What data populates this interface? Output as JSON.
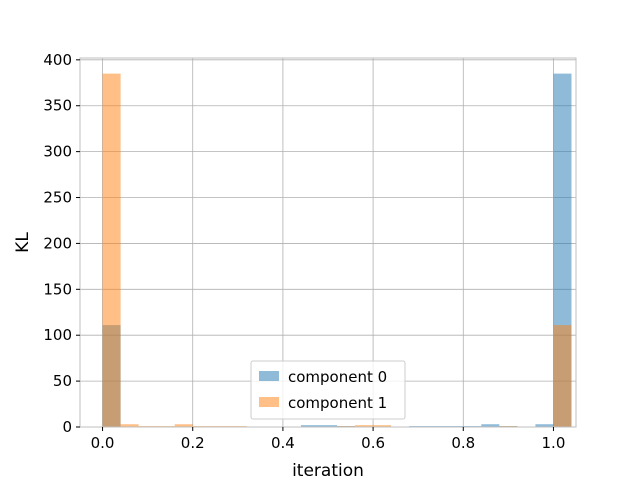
{
  "chart_data": {
    "type": "histogram",
    "xlabel": "iteration",
    "ylabel": "KL",
    "xlim": [
      -0.05,
      1.05
    ],
    "ylim": [
      0,
      402
    ],
    "grid": true,
    "legend_position": "lower-center",
    "xticks": [
      0.0,
      0.2,
      0.4,
      0.6,
      0.8,
      1.0
    ],
    "xtick_labels": [
      "0.0",
      "0.2",
      "0.4",
      "0.6",
      "0.8",
      "1.0"
    ],
    "yticks": [
      0,
      50,
      100,
      150,
      200,
      250,
      300,
      350,
      400
    ],
    "ytick_labels": [
      "0",
      "50",
      "100",
      "150",
      "200",
      "250",
      "300",
      "350",
      "400"
    ],
    "bins": [
      0.0,
      0.04,
      0.08,
      0.12,
      0.16,
      0.2,
      0.24,
      0.28,
      0.32,
      0.36,
      0.4,
      0.44,
      0.48,
      0.52,
      0.56,
      0.6,
      0.64,
      0.68,
      0.72,
      0.76,
      0.8,
      0.84,
      0.88,
      0.92,
      0.96,
      1.0
    ],
    "series": [
      {
        "name": "component 0",
        "color": "#1f77b4",
        "opacity": 0.5,
        "counts": [
          111,
          0,
          0,
          0,
          0,
          0,
          0,
          0,
          0,
          0,
          0,
          2,
          2,
          1,
          0,
          0,
          0,
          1,
          1,
          1,
          1,
          3,
          1,
          0,
          3,
          385
        ]
      },
      {
        "name": "component 1",
        "color": "#ff7f0e",
        "opacity": 0.5,
        "counts": [
          385,
          3,
          1,
          1,
          3,
          1,
          1,
          1,
          0,
          0,
          0,
          0,
          0,
          1,
          2,
          2,
          0,
          0,
          0,
          0,
          0,
          0,
          1,
          0,
          0,
          111
        ]
      }
    ]
  }
}
